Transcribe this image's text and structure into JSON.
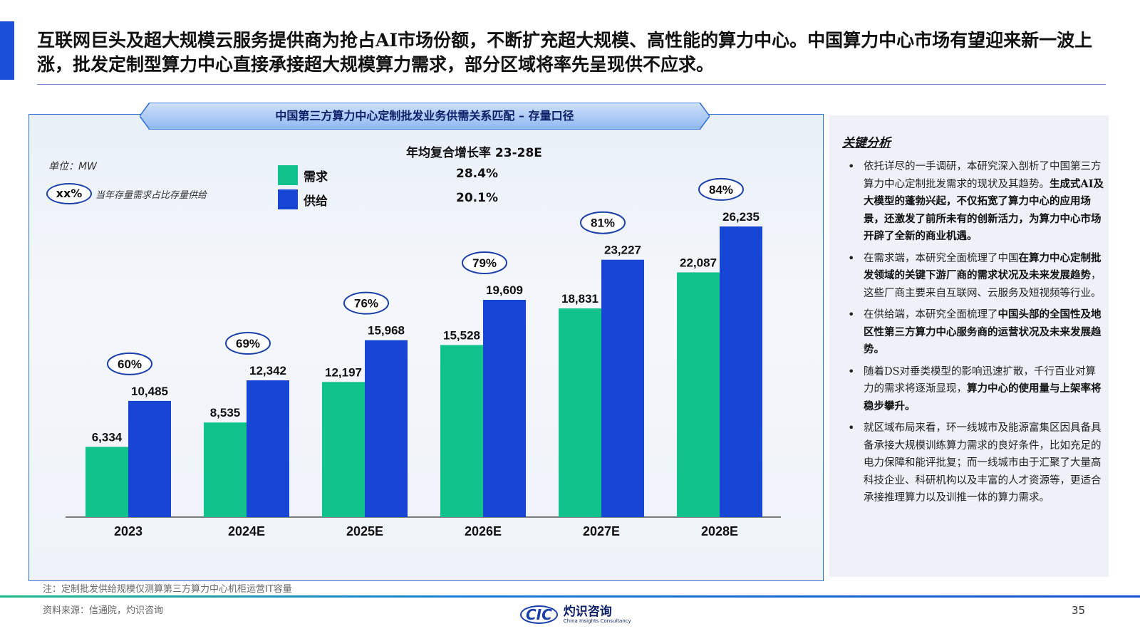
{
  "headline": "互联网巨头及超大规模云服务提供商为抢占AI市场份额，不断扩充超大规模、高性能的算力中心。中国算力中心市场有望迎来新一波上涨，批发定制型算力中心直接承接超大规模算力需求，部分区域将率先呈现供不应求。",
  "chart_title": "中国第三方算力中心定制批发业务供需关系匹配 – 存量口径",
  "unit_label": "单位：MW",
  "pct_key": {
    "sample": "xx%",
    "text": "当年存量需求占比存量供给"
  },
  "cagr_title": "年均复合增长率 23-28E",
  "colors": {
    "demand": "#12c28c",
    "supply": "#1846d4",
    "oval_border": "#1a3fa8"
  },
  "chart_data": {
    "type": "bar",
    "title": "中国第三方算力中心定制批发业务供需关系匹配 – 存量口径",
    "unit": "单位：MW",
    "categories": [
      "2023",
      "2024E",
      "2025E",
      "2026E",
      "2027E",
      "2028E"
    ],
    "series": [
      {
        "name": "需求",
        "cagr": "28.4%",
        "values": [
          6334,
          8535,
          12197,
          15528,
          18831,
          22087
        ],
        "labels": [
          "6,334",
          "8,535",
          "12,197",
          "15,528",
          "18,831",
          "22,087"
        ]
      },
      {
        "name": "供给",
        "cagr": "20.1%",
        "values": [
          10485,
          12342,
          15968,
          19609,
          23227,
          26235
        ],
        "labels": [
          "10,485",
          "12,342",
          "15,968",
          "19,609",
          "23,227",
          "26,235"
        ]
      }
    ],
    "ratio_labels": [
      "60%",
      "69%",
      "76%",
      "79%",
      "81%",
      "84%"
    ],
    "ylim": [
      0,
      27000
    ],
    "grid": false,
    "legend": "top-center"
  },
  "side": {
    "heading": "关键分析",
    "bullets": [
      {
        "plain": "依托详尽的一手调研，本研究深入剖析了中国第三方算力中心定制批发需求的现状及其趋势。",
        "bold": "生成式AI及大模型的蓬勃兴起，不仅拓宽了算力中心的应用场景，还激发了前所未有的创新活力，为算力中心市场开辟了全新的商业机遇。",
        "tail": ""
      },
      {
        "plain": "在需求端，本研究全面梳理了中国",
        "bold": "在算力中心定制批发领域的关键下游厂商的需求状况及未来发展趋势",
        "tail": "，这些厂商主要来自互联网、云服务及短视频等行业。"
      },
      {
        "plain": "在供给端，本研究全面梳理了",
        "bold": "中国头部的全国性及地区性第三方算力中心服务商的运营状况及未来发展趋势。",
        "tail": ""
      },
      {
        "plain": "随着DS对垂类模型的影响迅速扩散，千行百业对算力的需求将逐渐显现，",
        "bold": "算力中心的使用量与上架率将稳步攀升。",
        "tail": ""
      },
      {
        "plain": "就区域布局来看，环一线城市及能源富集区因具备具备承接大规模训练算力需求的良好条件，比如充足的电力保障和能评批复；而一线城市由于汇聚了大量高科技企业、科研机构以及丰富的人才资源等，更适合承接推理算力以及训推一体的算力需求。",
        "bold": "",
        "tail": ""
      }
    ]
  },
  "note": "注：定制批发供给规模仅测算第三方算力中心机柜运营IT容量",
  "source": "资料来源：信通院，灼识咨询",
  "logo": {
    "mark": "CIC",
    "cn": "灼识咨询",
    "en": "China Insights Consultancy"
  },
  "page_number": "35"
}
